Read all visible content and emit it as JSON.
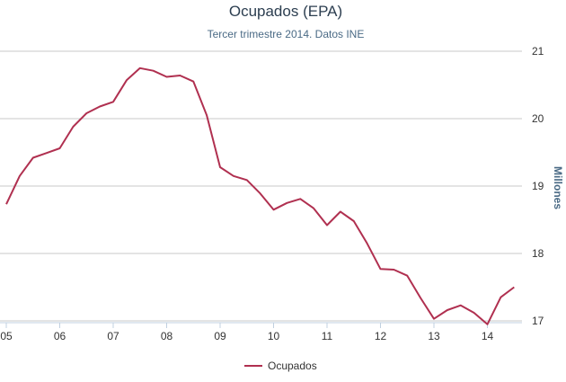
{
  "chart_data": {
    "type": "line",
    "title": "Ocupados (EPA)",
    "subtitle": "Tercer trimestre 2014. Datos INE",
    "xlabel": "",
    "ylabel": "Millones",
    "ylim": [
      17,
      21
    ],
    "xlim": [
      2005.0,
      2015.0
    ],
    "yticks": [
      17,
      18,
      19,
      20,
      21
    ],
    "xticks": [
      {
        "value": 2005.0,
        "label": "05"
      },
      {
        "value": 2006.0,
        "label": "06"
      },
      {
        "value": 2007.0,
        "label": "07"
      },
      {
        "value": 2008.0,
        "label": "08"
      },
      {
        "value": 2009.0,
        "label": "09"
      },
      {
        "value": 2010.0,
        "label": "10"
      },
      {
        "value": 2011.0,
        "label": "11"
      },
      {
        "value": 2012.0,
        "label": "12"
      },
      {
        "value": 2013.0,
        "label": "13"
      },
      {
        "value": 2014.0,
        "label": "14"
      }
    ],
    "grid": true,
    "legend_position": "bottom-center",
    "series": [
      {
        "name": "Ocupados",
        "color": "#b03050",
        "points": [
          {
            "x": 2005.0,
            "y": 18.73
          },
          {
            "x": 2005.25,
            "y": 19.15
          },
          {
            "x": 2005.5,
            "y": 19.42
          },
          {
            "x": 2005.75,
            "y": 19.49
          },
          {
            "x": 2006.0,
            "y": 19.56
          },
          {
            "x": 2006.25,
            "y": 19.88
          },
          {
            "x": 2006.5,
            "y": 20.08
          },
          {
            "x": 2006.75,
            "y": 20.18
          },
          {
            "x": 2007.0,
            "y": 20.25
          },
          {
            "x": 2007.25,
            "y": 20.57
          },
          {
            "x": 2007.5,
            "y": 20.75
          },
          {
            "x": 2007.75,
            "y": 20.71
          },
          {
            "x": 2008.0,
            "y": 20.62
          },
          {
            "x": 2008.25,
            "y": 20.64
          },
          {
            "x": 2008.5,
            "y": 20.55
          },
          {
            "x": 2008.75,
            "y": 20.05
          },
          {
            "x": 2009.0,
            "y": 19.28
          },
          {
            "x": 2009.25,
            "y": 19.15
          },
          {
            "x": 2009.5,
            "y": 19.09
          },
          {
            "x": 2009.75,
            "y": 18.89
          },
          {
            "x": 2010.0,
            "y": 18.65
          },
          {
            "x": 2010.25,
            "y": 18.75
          },
          {
            "x": 2010.5,
            "y": 18.81
          },
          {
            "x": 2010.75,
            "y": 18.67
          },
          {
            "x": 2011.0,
            "y": 18.42
          },
          {
            "x": 2011.25,
            "y": 18.62
          },
          {
            "x": 2011.5,
            "y": 18.48
          },
          {
            "x": 2011.75,
            "y": 18.15
          },
          {
            "x": 2012.0,
            "y": 17.77
          },
          {
            "x": 2012.25,
            "y": 17.76
          },
          {
            "x": 2012.5,
            "y": 17.67
          },
          {
            "x": 2012.75,
            "y": 17.34
          },
          {
            "x": 2013.0,
            "y": 17.03
          },
          {
            "x": 2013.25,
            "y": 17.16
          },
          {
            "x": 2013.5,
            "y": 17.23
          },
          {
            "x": 2013.75,
            "y": 17.12
          },
          {
            "x": 2014.0,
            "y": 16.95
          },
          {
            "x": 2014.25,
            "y": 17.35
          },
          {
            "x": 2014.5,
            "y": 17.5
          }
        ]
      }
    ]
  }
}
